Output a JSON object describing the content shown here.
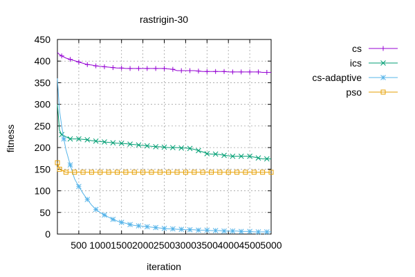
{
  "chart_data": {
    "type": "line",
    "title": "rastrigin-30",
    "xlabel": "iteration",
    "ylabel": "fitness",
    "xlim": [
      0,
      5000
    ],
    "ylim": [
      0,
      450
    ],
    "xticks": [
      500,
      1000,
      1500,
      2000,
      2500,
      3000,
      3500,
      4000,
      4500,
      5000
    ],
    "yticks": [
      0,
      50,
      100,
      150,
      200,
      250,
      300,
      350,
      400,
      450
    ],
    "grid": true,
    "legend_position": "outside-right",
    "series": [
      {
        "name": "cs",
        "color": "#9400d3",
        "marker": "plus",
        "x": [
          0,
          50,
          100,
          200,
          300,
          400,
          500,
          600,
          700,
          800,
          900,
          1000,
          1100,
          1200,
          1300,
          1400,
          1500,
          1600,
          1700,
          1800,
          1900,
          2000,
          2100,
          2200,
          2300,
          2400,
          2500,
          2600,
          2700,
          2800,
          2900,
          3000,
          3100,
          3200,
          3300,
          3400,
          3500,
          3600,
          3700,
          3800,
          3900,
          4000,
          4100,
          4200,
          4300,
          4400,
          4500,
          4600,
          4700,
          4800,
          4900,
          5000
        ],
        "y": [
          420,
          415,
          412,
          407,
          404,
          401,
          398,
          395,
          392,
          391,
          389,
          388,
          387,
          386,
          385,
          384,
          384,
          383,
          383,
          383,
          383,
          383,
          383,
          383,
          383,
          383,
          383,
          382,
          381,
          378,
          378,
          378,
          378,
          378,
          377,
          376,
          376,
          376,
          376,
          376,
          376,
          375,
          375,
          375,
          375,
          375,
          375,
          375,
          375,
          374,
          374,
          374
        ]
      },
      {
        "name": "ics",
        "color": "#009e73",
        "marker": "cross",
        "x": [
          0,
          50,
          100,
          200,
          300,
          400,
          500,
          600,
          700,
          800,
          900,
          1000,
          1100,
          1200,
          1300,
          1400,
          1500,
          1600,
          1700,
          1800,
          1900,
          2000,
          2100,
          2200,
          2300,
          2400,
          2500,
          2600,
          2700,
          2800,
          2900,
          3000,
          3100,
          3200,
          3300,
          3400,
          3500,
          3600,
          3700,
          3800,
          3900,
          4000,
          4100,
          4200,
          4300,
          4400,
          4500,
          4600,
          4700,
          4800,
          4900,
          5000
        ],
        "y": [
          300,
          240,
          230,
          225,
          220,
          220,
          220,
          219,
          218,
          216,
          215,
          214,
          213,
          212,
          211,
          210,
          210,
          209,
          208,
          207,
          206,
          205,
          204,
          203,
          202,
          202,
          201,
          200,
          200,
          200,
          199,
          199,
          198,
          196,
          193,
          190,
          186,
          185,
          185,
          184,
          182,
          181,
          180,
          180,
          180,
          180,
          180,
          178,
          176,
          174,
          174,
          174
        ]
      },
      {
        "name": "cs-adaptive",
        "color": "#56b4e9",
        "marker": "star",
        "x": [
          0,
          25,
          50,
          100,
          150,
          200,
          300,
          400,
          500,
          600,
          700,
          800,
          900,
          1000,
          1100,
          1200,
          1300,
          1400,
          1500,
          1600,
          1700,
          1800,
          1900,
          2000,
          2100,
          2200,
          2300,
          2400,
          2500,
          2600,
          2700,
          2800,
          2900,
          3000,
          3100,
          3200,
          3300,
          3400,
          3500,
          3600,
          3700,
          3800,
          3900,
          4000,
          4100,
          4200,
          4300,
          4400,
          4500,
          4600,
          4700,
          4800,
          4900,
          5000
        ],
        "y": [
          360,
          320,
          285,
          250,
          220,
          195,
          160,
          128,
          110,
          94,
          80,
          67,
          57,
          50,
          44,
          39,
          34,
          30,
          27,
          25,
          22,
          20,
          19,
          18,
          17,
          16,
          15,
          14,
          13,
          12,
          12,
          11,
          11,
          10,
          10,
          10,
          9,
          9,
          9,
          8,
          8,
          8,
          7,
          7,
          7,
          7,
          6,
          6,
          6,
          5,
          5,
          5,
          5,
          5
        ]
      },
      {
        "name": "pso",
        "color": "#e69f00",
        "marker": "square",
        "x": [
          0,
          50,
          200,
          400,
          600,
          800,
          1000,
          1200,
          1400,
          1600,
          1800,
          2000,
          2200,
          2400,
          2600,
          2800,
          3000,
          3200,
          3400,
          3600,
          3800,
          4000,
          4200,
          4400,
          4600,
          4800,
          5000
        ],
        "y": [
          165,
          150,
          143,
          143,
          143,
          143,
          143,
          143,
          143,
          143,
          143,
          143,
          143,
          143,
          143,
          143,
          143,
          143,
          143,
          143,
          143,
          143,
          143,
          143,
          143,
          143,
          143
        ]
      }
    ]
  }
}
